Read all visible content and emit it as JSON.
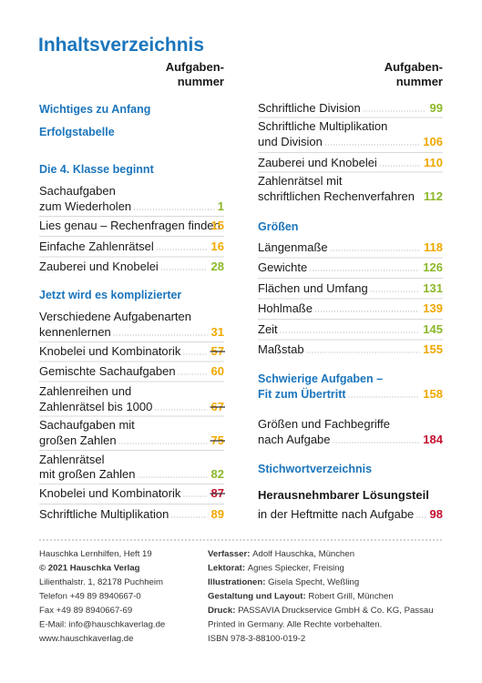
{
  "title": "Inhaltsverzeichnis",
  "columns": [
    {
      "header": [
        "Aufgaben-",
        "nummer"
      ],
      "entries": [
        {
          "kind": "heading",
          "lines": [
            "Wichtiges zu Anfang"
          ]
        },
        {
          "kind": "heading",
          "lines": [
            "Erfolgstabelle"
          ]
        },
        {
          "kind": "heading",
          "lines": [
            "Die 4. Klasse beginnt"
          ]
        },
        {
          "kind": "item",
          "lines": [
            "Sachaufgaben",
            "zum Wiederholen"
          ],
          "page": 1,
          "color": "#8cb82a"
        },
        {
          "kind": "item",
          "lines": [
            "Lies genau – Rechenfragen finden"
          ],
          "page": 15,
          "color": "#f0a800"
        },
        {
          "kind": "item",
          "lines": [
            "Einfache Zahlenrätsel"
          ],
          "page": 16,
          "color": "#f0a800"
        },
        {
          "kind": "item",
          "lines": [
            "Zauberei und Knobelei"
          ],
          "page": 28,
          "color": "#8cb82a"
        },
        {
          "kind": "heading",
          "lines": [
            "Jetzt wird es komplizierter"
          ]
        },
        {
          "kind": "item",
          "lines": [
            "Verschiedene Aufgabenarten",
            "kennenlernen"
          ],
          "page": 31,
          "color": "#f0a800"
        },
        {
          "kind": "item",
          "lines": [
            "Knobelei und Kombinatorik"
          ],
          "page": 57,
          "color": "#f0a800",
          "crossed": true
        },
        {
          "kind": "item",
          "lines": [
            "Gemischte Sachaufgaben"
          ],
          "page": 60,
          "color": "#f0a800"
        },
        {
          "kind": "item",
          "lines": [
            "Zahlenreihen und",
            "Zahlenrätsel bis 1000"
          ],
          "page": 67,
          "color": "#f0a800",
          "crossed": true
        },
        {
          "kind": "item",
          "lines": [
            "Sachaufgaben mit",
            "großen Zahlen"
          ],
          "page": 75,
          "color": "#f0a800",
          "crossed": true
        },
        {
          "kind": "item",
          "lines": [
            "Zahlenrätsel",
            "mit großen Zahlen"
          ],
          "page": 82,
          "color": "#8cb82a"
        },
        {
          "kind": "item",
          "lines": [
            "Knobelei und Kombinatorik"
          ],
          "page": 87,
          "color": "#c4122f",
          "crossed": true
        },
        {
          "kind": "item",
          "lines": [
            "Schriftliche Multiplikation"
          ],
          "page": 89,
          "color": "#f0a800"
        }
      ]
    },
    {
      "header": [
        "Aufgaben-",
        "nummer"
      ],
      "entries": [
        {
          "kind": "item",
          "lines": [
            "Schriftliche Division"
          ],
          "page": 99,
          "color": "#8cb82a"
        },
        {
          "kind": "item",
          "lines": [
            "Schriftliche Multiplikation",
            "und Division"
          ],
          "page": 106,
          "color": "#f0a800"
        },
        {
          "kind": "item",
          "lines": [
            "Zauberei und Knobelei"
          ],
          "page": 110,
          "color": "#f0a800"
        },
        {
          "kind": "item",
          "lines": [
            "Zahlenrätsel mit",
            "schriftlichen Rechenverfahren"
          ],
          "page": 112,
          "color": "#8cb82a"
        },
        {
          "kind": "heading",
          "lines": [
            "Größen"
          ]
        },
        {
          "kind": "item",
          "lines": [
            "Längenmaße"
          ],
          "page": 118,
          "color": "#f0a800"
        },
        {
          "kind": "item",
          "lines": [
            "Gewichte"
          ],
          "page": 126,
          "color": "#8cb82a"
        },
        {
          "kind": "item",
          "lines": [
            "Flächen und Umfang"
          ],
          "page": 131,
          "color": "#8cb82a"
        },
        {
          "kind": "item",
          "lines": [
            "Hohlmaße"
          ],
          "page": 139,
          "color": "#f0a800"
        },
        {
          "kind": "item",
          "lines": [
            "Zeit"
          ],
          "page": 145,
          "color": "#8cb82a"
        },
        {
          "kind": "item",
          "lines": [
            "Maßstab"
          ],
          "page": 155,
          "color": "#f0a800"
        },
        {
          "kind": "heading",
          "lines": [
            "Schwierige Aufgaben –",
            "Fit zum Übertritt"
          ],
          "page": 158,
          "color": "#f0a800"
        },
        {
          "kind": "item",
          "lines": [
            "Größen und Fachbegriffe",
            "nach Aufgabe"
          ],
          "page": 184,
          "color": "#c4122f"
        },
        {
          "kind": "heading",
          "lines": [
            "Stichwortverzeichnis"
          ]
        },
        {
          "kind": "lead",
          "lines": [
            "Herausnehmbarer Lösungsteil",
            "in der Heftmitte nach Aufgabe"
          ],
          "page": 98,
          "color": "#c4122f"
        }
      ]
    }
  ],
  "footer": {
    "left": [
      {
        "text": "Hauschka Lernhilfen, Heft 19"
      },
      {
        "text": "© 2021 Hauschka Verlag",
        "bold": true
      },
      {
        "text": "Lilienthalstr. 1, 82178 Puchheim"
      },
      {
        "text": "Telefon +49 89 8940667-0"
      },
      {
        "text": "Fax +49 89 8940667-69"
      },
      {
        "text": "E-Mail: info@hauschkaverlag.de"
      },
      {
        "text": "www.hauschkaverlag.de"
      }
    ],
    "right": [
      {
        "label": "Verfasser:",
        "text": "Adolf Hauschka, München"
      },
      {
        "label": "Lektorat:",
        "text": "Agnes Spiecker, Freising"
      },
      {
        "label": "Illustrationen:",
        "text": "Gisela Specht, Weßling"
      },
      {
        "label": "Gestaltung und Layout:",
        "text": "Robert Grill, München"
      },
      {
        "label": "Druck:",
        "text": "PASSAVIA Druckservice GmbH & Co. KG, Passau"
      },
      {
        "text": "Printed in Germany. Alle Rechte vorbehalten."
      },
      {
        "text": "ISBN 978-3-88100-019-2"
      }
    ]
  }
}
